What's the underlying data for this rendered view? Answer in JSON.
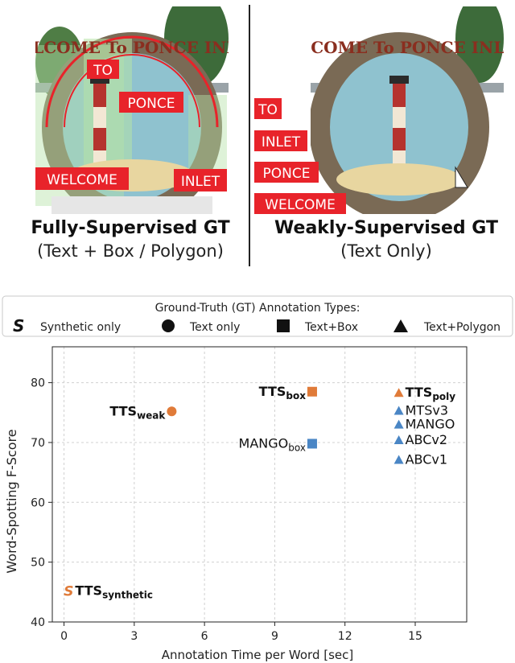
{
  "panels": {
    "left": {
      "title": "Fully-Supervised GT",
      "subtitle": "(Text + Box / Polygon)",
      "sign_text": "WELCOME To PONCE INLET",
      "labels": [
        "TO",
        "PONCE",
        "WELCOME",
        "INLET"
      ]
    },
    "right": {
      "title": "Weakly-Supervised GT",
      "subtitle": "(Text Only)",
      "sign_text": "WELCOME To PONCE INLET",
      "labels": [
        "TO",
        "INLET",
        "PONCE",
        "WELCOME"
      ]
    }
  },
  "legend": {
    "title": "Ground-Truth (GT) Annotation Types:",
    "items": [
      {
        "marker": "S",
        "label": "Synthetic only"
      },
      {
        "marker": "circle",
        "label": "Text only"
      },
      {
        "marker": "square",
        "label": "Text+Box"
      },
      {
        "marker": "triangle",
        "label": "Text+Polygon"
      }
    ]
  },
  "colors": {
    "ours": "#e07b39",
    "others": "#4a86c5",
    "label_red": "#e8232a"
  },
  "chart_data": {
    "type": "scatter",
    "xlabel": "Annotation Time per Word [sec]",
    "ylabel": "Word-Spotting F-Score",
    "xlim": [
      -0.5,
      17.2
    ],
    "ylim": [
      40,
      86
    ],
    "xticks": [
      0,
      3,
      6,
      9,
      12,
      15
    ],
    "yticks": [
      40,
      50,
      60,
      70,
      80
    ],
    "grid": true,
    "points": [
      {
        "x": 0.2,
        "y": 45.2,
        "marker": "S",
        "group": "ours",
        "name": "TTS",
        "sub": "synthetic",
        "bold": true
      },
      {
        "x": 4.6,
        "y": 75.2,
        "marker": "circle",
        "group": "ours",
        "name": "TTS",
        "sub": "weak",
        "bold": true
      },
      {
        "x": 10.6,
        "y": 78.5,
        "marker": "square",
        "group": "ours",
        "name": "TTS",
        "sub": "box",
        "bold": true
      },
      {
        "x": 10.6,
        "y": 69.8,
        "marker": "square",
        "group": "others",
        "name": "MANGO",
        "sub": "box",
        "bold": false
      },
      {
        "x": 14.3,
        "y": 78.3,
        "marker": "triangle",
        "group": "ours",
        "name": "TTS",
        "sub": "poly",
        "bold": true
      },
      {
        "x": 14.3,
        "y": 75.3,
        "marker": "triangle",
        "group": "others",
        "name": "MTSv3",
        "sub": "",
        "bold": false
      },
      {
        "x": 14.3,
        "y": 73.0,
        "marker": "triangle",
        "group": "others",
        "name": "MANGO",
        "sub": "",
        "bold": false
      },
      {
        "x": 14.3,
        "y": 70.4,
        "marker": "triangle",
        "group": "others",
        "name": "ABCv2",
        "sub": "",
        "bold": false
      },
      {
        "x": 14.3,
        "y": 67.1,
        "marker": "triangle",
        "group": "others",
        "name": "ABCv1",
        "sub": "",
        "bold": false
      }
    ]
  }
}
